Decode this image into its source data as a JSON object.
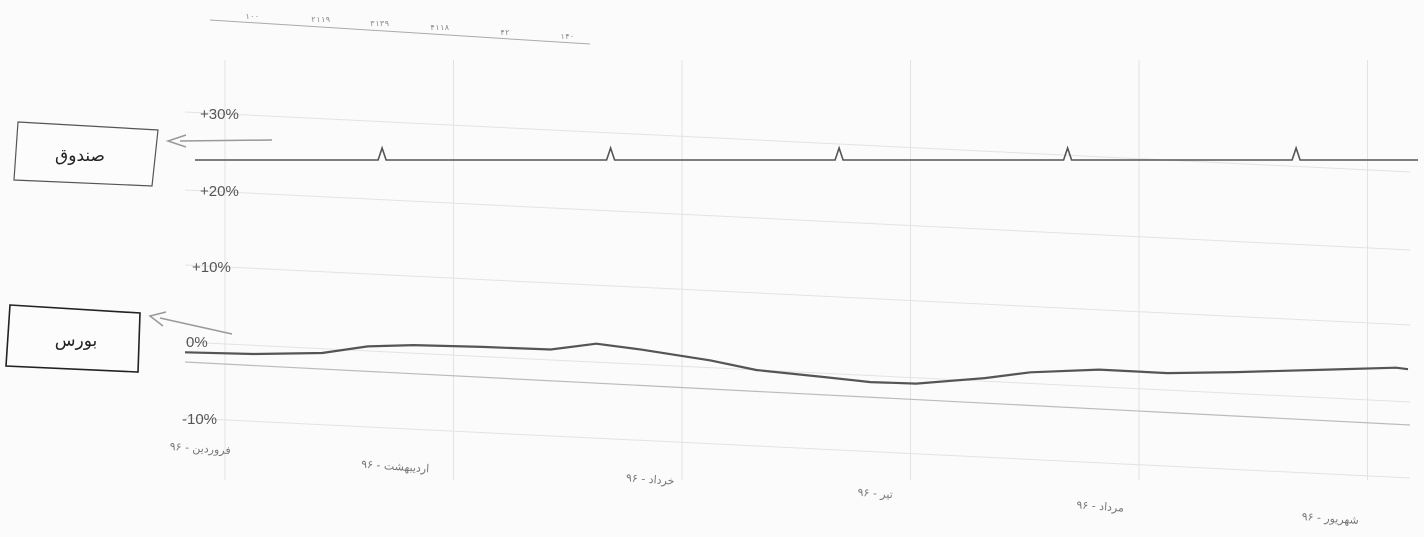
{
  "chart_data": {
    "type": "line",
    "title": "",
    "xlabel": "",
    "ylabel": "",
    "y_ticks": [
      "+30%",
      "+20%",
      "+10%",
      "0%",
      "-10%"
    ],
    "ylim": [
      -10,
      30
    ],
    "grid": true,
    "categories": [
      "فروردین - ۹۶",
      "اردیبهشت - ۹۶",
      "خرداد - ۹۶",
      "تیر - ۹۶",
      "مرداد - ۹۶",
      "شهریور - ۹۶"
    ],
    "series": [
      {
        "name": "صندوق",
        "color": "#555555",
        "x": [
          0,
          0.6,
          1,
          1.6,
          2,
          2.6,
          3,
          3.6,
          4,
          4.6,
          5,
          5.2
        ],
        "y": [
          21.5,
          21.5,
          21.5,
          21.5,
          21.5,
          21.5,
          21.5,
          21.5,
          21.5,
          21.5,
          21.5,
          21.5
        ],
        "spikes_at": [
          0.6,
          1.6,
          2.6,
          3.6,
          4.6
        ]
      },
      {
        "name": "بورس",
        "color": "#555555",
        "x": [
          0,
          0.3,
          0.6,
          0.8,
          1.0,
          1.3,
          1.6,
          1.8,
          2.0,
          2.3,
          2.5,
          2.8,
          3.0,
          3.2,
          3.5,
          3.7,
          4.0,
          4.3,
          4.6,
          5.0,
          5.3,
          5.5
        ],
        "y": [
          0.3,
          0.2,
          0.4,
          1.2,
          1.4,
          1.3,
          1.1,
          1.8,
          1.2,
          0.1,
          -0.9,
          -1.6,
          -2.1,
          -2.2,
          -1.5,
          -0.8,
          -0.4,
          -0.7,
          -0.5,
          -0.1,
          0.2,
          0.1
        ]
      }
    ]
  },
  "annotations": {
    "fund_box": "صندوق",
    "stock_box": "بورس"
  },
  "top_strip": [
    "۱۰۰",
    "۲۱۱۹",
    "۳۱۳۹",
    "۴۱۱۸",
    "۴۲",
    "۱۴۰"
  ],
  "colors": {
    "line": "#555555",
    "grid": "#e3e3e3",
    "text": "#555555"
  }
}
